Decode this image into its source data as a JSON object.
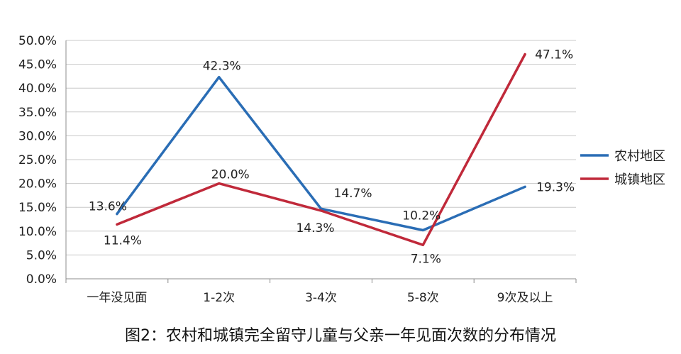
{
  "chart_data": {
    "type": "line",
    "title": "",
    "caption": "图2：农村和城镇完全留守儿童与父亲一年见面次数的分布情况",
    "xlabel": "",
    "ylabel": "",
    "categories": [
      "一年没见面",
      "1-2次",
      "3-4次",
      "5-8次",
      "9次及以上"
    ],
    "y_ticks": [
      "0.0%",
      "5.0%",
      "10.0%",
      "15.0%",
      "20.0%",
      "25.0%",
      "30.0%",
      "35.0%",
      "40.0%",
      "45.0%",
      "50.0%"
    ],
    "ylim": [
      0,
      50
    ],
    "grid": "horizontal",
    "legend_position": "right",
    "series": [
      {
        "name": "农村地区",
        "color": "#2a6db5",
        "values": [
          13.6,
          42.3,
          14.7,
          10.2,
          19.3
        ],
        "labels": [
          "13.6%",
          "42.3%",
          "14.7%",
          "10.2%",
          "19.3%"
        ]
      },
      {
        "name": "城镇地区",
        "color": "#c0293a",
        "values": [
          11.4,
          20.0,
          14.3,
          7.1,
          47.1
        ],
        "labels": [
          "11.4%",
          "20.0%",
          "14.3%",
          "7.1%",
          "47.1%"
        ]
      }
    ]
  }
}
